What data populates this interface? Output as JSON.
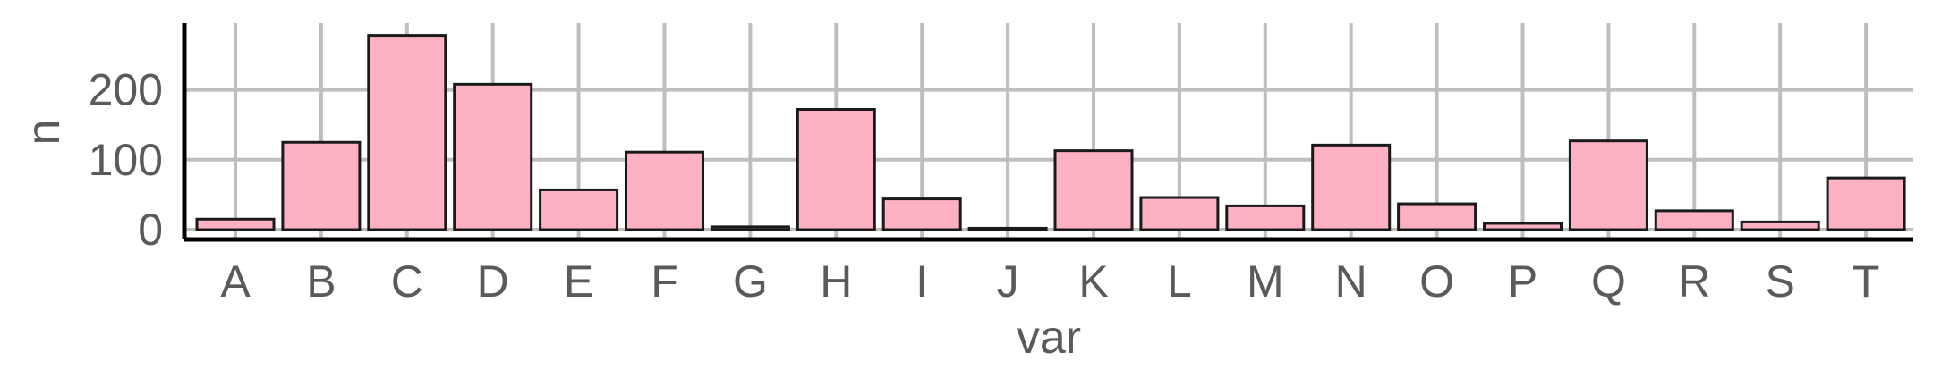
{
  "chart_data": {
    "type": "bar",
    "title": "",
    "xlabel": "var",
    "ylabel": "n",
    "categories": [
      "A",
      "B",
      "C",
      "D",
      "E",
      "F",
      "G",
      "H",
      "I",
      "J",
      "K",
      "L",
      "M",
      "N",
      "O",
      "P",
      "Q",
      "R",
      "S",
      "T"
    ],
    "values": [
      15,
      125,
      278,
      208,
      57,
      111,
      4,
      172,
      44,
      2,
      113,
      46,
      34,
      121,
      37,
      9,
      127,
      27,
      11,
      74
    ],
    "ylim": [
      0,
      290
    ],
    "yticks": [
      0,
      100,
      200
    ],
    "grid": true,
    "legend": "none",
    "colors": {
      "bar_fill": "#feb1c2",
      "bar_stroke": "#1a1a1a",
      "grid": "#bebebe",
      "axis": "#000000",
      "text": "#5a5a5a"
    }
  }
}
